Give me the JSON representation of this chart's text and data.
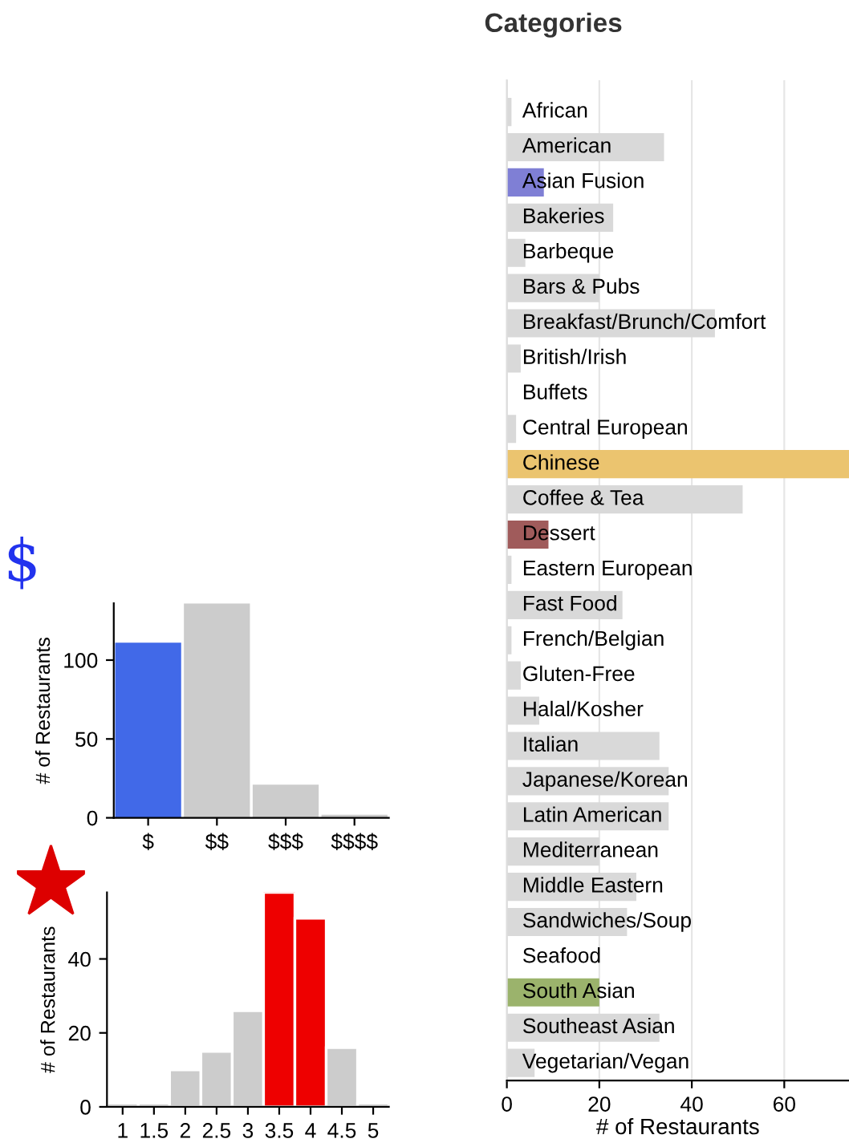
{
  "chart_data": [
    {
      "type": "bar",
      "title": "Categories",
      "orientation": "horizontal",
      "xlabel": "# of Restaurants",
      "categories": [
        "African",
        "American",
        "Asian Fusion",
        "Bakeries",
        "Barbeque",
        "Bars & Pubs",
        "Breakfast/Brunch/Comfort",
        "British/Irish",
        "Buffets",
        "Central European",
        "Chinese",
        "Coffee & Tea",
        "Dessert",
        "Eastern European",
        "Fast Food",
        "French/Belgian",
        "Gluten-Free",
        "Halal/Kosher",
        "Italian",
        "Japanese/Korean",
        "Latin American",
        "Mediterranean",
        "Middle Eastern",
        "Sandwiches/Soup",
        "Seafood",
        "South Asian",
        "Southeast Asian",
        "Vegetarian/Vegan"
      ],
      "values": [
        1,
        34,
        8,
        23,
        4,
        20,
        45,
        3,
        0,
        2,
        74,
        51,
        9,
        1,
        25,
        1,
        3,
        7,
        33,
        35,
        35,
        20,
        28,
        26,
        0,
        20,
        33,
        6
      ],
      "colors": [
        "#d9d9d9",
        "#d9d9d9",
        "#7f7fd5",
        "#d9d9d9",
        "#d9d9d9",
        "#d9d9d9",
        "#d9d9d9",
        "#d9d9d9",
        "#d9d9d9",
        "#d9d9d9",
        "#ebc46f",
        "#d9d9d9",
        "#a05b5b",
        "#d9d9d9",
        "#d9d9d9",
        "#d9d9d9",
        "#d9d9d9",
        "#d9d9d9",
        "#d9d9d9",
        "#d9d9d9",
        "#d9d9d9",
        "#d9d9d9",
        "#d9d9d9",
        "#d9d9d9",
        "#d9d9d9",
        "#9bb36c",
        "#d9d9d9",
        "#d9d9d9"
      ],
      "xlim": [
        0,
        74
      ],
      "xticks": [
        0,
        20,
        40,
        60
      ],
      "grid": "x"
    },
    {
      "type": "bar",
      "title": "$",
      "ylabel": "# of Restaurants",
      "categories": [
        "$",
        "$$",
        "$$$",
        "$$$$"
      ],
      "values": [
        111,
        136,
        21,
        2
      ],
      "colors": [
        "#4169e8",
        "#cccccc",
        "#cccccc",
        "#cccccc"
      ],
      "ylim": [
        0,
        136
      ],
      "yticks": [
        0,
        50,
        100
      ]
    },
    {
      "type": "histogram",
      "ylabel": "# of Restaurants",
      "bins": [
        0.75,
        1.25,
        1.75,
        2.25,
        2.75,
        3.25,
        3.75,
        4.25,
        4.75,
        5.25
      ],
      "values": [
        1,
        1,
        10,
        15,
        26,
        58,
        51,
        16,
        1
      ],
      "colors": [
        "#cccccc",
        "#cccccc",
        "#cccccc",
        "#cccccc",
        "#cccccc",
        "#ee0000",
        "#ee0000",
        "#cccccc",
        "#cccccc"
      ],
      "xlim": [
        0.75,
        5.25
      ],
      "xticks": [
        1,
        1.5,
        2,
        2.5,
        3,
        3.5,
        4,
        4.5,
        5
      ],
      "ylim": [
        0,
        58
      ],
      "yticks": [
        0,
        20,
        40
      ]
    }
  ]
}
